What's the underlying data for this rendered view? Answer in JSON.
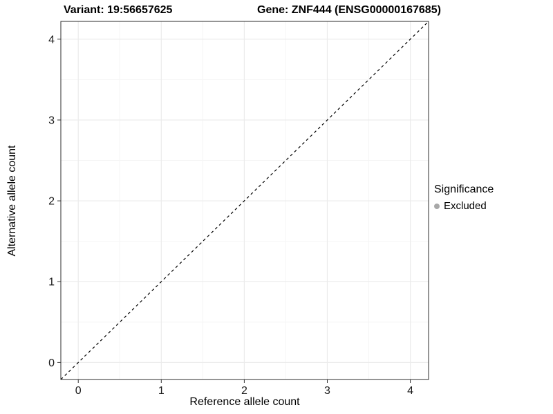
{
  "chart_data": {
    "type": "scatter",
    "title_left": "Variant: 19:56657625",
    "title_right": "Gene: ZNF444 (ENSG00000167685)",
    "xlabel": "Reference allele count",
    "ylabel": "Alternative allele count",
    "xlim": [
      -0.21,
      4.22
    ],
    "ylim": [
      -0.21,
      4.22
    ],
    "xticks": [
      0,
      1,
      2,
      3,
      4
    ],
    "yticks": [
      0,
      1,
      2,
      3,
      4
    ],
    "xminor": [
      0.5,
      1.5,
      2.5,
      3.5
    ],
    "yminor": [
      0.5,
      1.5,
      2.5,
      3.5
    ],
    "grid": "on",
    "identity_line": {
      "style": "dashed",
      "color": "#000000",
      "from": -0.21,
      "to": 4.22
    },
    "points": [],
    "legend": {
      "position": "right",
      "title": "Significance",
      "items": [
        {
          "label": "Excluded",
          "color": "#a8a8a8"
        }
      ]
    },
    "colors": {
      "panel_bg": "#ffffff",
      "grid_major": "#ebebeb",
      "grid_minor": "#f5f5f5",
      "panel_border": "#2b2b2b",
      "tick": "#333333",
      "tick_label": "#1a1a1a"
    },
    "tick_label_size": 16
  }
}
